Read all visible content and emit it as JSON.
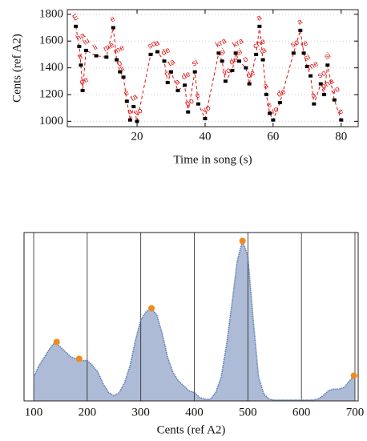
{
  "chart_data": [
    {
      "type": "line",
      "xlabel": "Time in song (s)",
      "ylabel": "Cents (ref A2)",
      "x": [
        2,
        3,
        3.5,
        4,
        5,
        8,
        11,
        13,
        14,
        15,
        16,
        17,
        18,
        19,
        20,
        24,
        26,
        28,
        29,
        30,
        32,
        34,
        35,
        37,
        38,
        40,
        44,
        45,
        46,
        48,
        49,
        50,
        52,
        53,
        55,
        56,
        57,
        58,
        59,
        60,
        62,
        66,
        68,
        69,
        70,
        71,
        72,
        74,
        75,
        76,
        78,
        80
      ],
      "values": [
        1710,
        1560,
        1420,
        1230,
        1530,
        1490,
        1480,
        1700,
        1460,
        1370,
        1330,
        1150,
        1010,
        1110,
        1000,
        1500,
        1520,
        1450,
        1290,
        1370,
        1230,
        1270,
        1070,
        1370,
        1130,
        1020,
        1510,
        1450,
        1300,
        1380,
        1510,
        1450,
        1400,
        1280,
        1500,
        1710,
        1460,
        1200,
        1060,
        1010,
        1140,
        1510,
        1680,
        1510,
        1410,
        1340,
        1130,
        1280,
        1200,
        1420,
        1160,
        1010
      ],
      "point_labels": [
        "E",
        "ha",
        "tr",
        "de",
        "lu",
        "li",
        "me",
        "e",
        "me",
        "o",
        "li",
        "e",
        "a",
        "ta",
        "vo",
        "so",
        "a",
        "de",
        "ra",
        "ta",
        "a",
        "de",
        "po",
        "si",
        "e",
        "vo",
        "kra",
        "si",
        "vo",
        "de",
        "kra",
        "si",
        "o",
        "de",
        "che",
        "a",
        "ia",
        "a",
        "e",
        "vo",
        "de",
        "so",
        "a",
        "re",
        "si",
        "me",
        "a",
        "so",
        "pha",
        "si",
        "vo",
        "e"
      ],
      "color": "#e01010",
      "marker_color": "#000000",
      "xlim": [
        -0.5,
        85
      ],
      "ylim": [
        960,
        1835
      ],
      "xticks": [
        20,
        40,
        60,
        80
      ],
      "yticks": [
        1000,
        1200,
        1400,
        1600,
        1800
      ],
      "grid": "y"
    },
    {
      "type": "area",
      "xlabel": "Cents (ref A2)",
      "x": [
        100,
        110,
        120,
        130,
        140,
        150,
        160,
        170,
        180,
        190,
        200,
        210,
        220,
        230,
        240,
        250,
        260,
        270,
        280,
        290,
        300,
        310,
        320,
        330,
        340,
        350,
        360,
        370,
        380,
        390,
        400,
        410,
        420,
        430,
        440,
        450,
        460,
        470,
        480,
        490,
        500,
        510,
        520,
        530,
        540,
        550,
        560,
        570,
        580,
        590,
        600,
        610,
        620,
        630,
        640,
        650,
        660,
        670,
        680,
        690,
        700
      ],
      "values": [
        0.14,
        0.21,
        0.26,
        0.31,
        0.35,
        0.32,
        0.29,
        0.26,
        0.25,
        0.24,
        0.24,
        0.21,
        0.17,
        0.1,
        0.05,
        0.03,
        0.05,
        0.11,
        0.21,
        0.36,
        0.48,
        0.53,
        0.55,
        0.51,
        0.4,
        0.26,
        0.17,
        0.12,
        0.09,
        0.06,
        0.05,
        0.02,
        0.01,
        0.01,
        0.05,
        0.14,
        0.33,
        0.57,
        0.83,
        0.95,
        0.86,
        0.48,
        0.14,
        0.04,
        0.01,
        0.005,
        0.005,
        0.005,
        0.005,
        0.005,
        0.005,
        0.005,
        0.005,
        0.01,
        0.03,
        0.06,
        0.07,
        0.07,
        0.08,
        0.12,
        0.15
      ],
      "color": "#5b7db5",
      "fill": "#aebbd6",
      "peaks": {
        "x": [
          143,
          185,
          320,
          490,
          698
        ],
        "values": [
          0.35,
          0.25,
          0.55,
          0.95,
          0.15
        ],
        "color": "#f08a1c"
      },
      "xlim": [
        82,
        706
      ],
      "ylim": [
        0,
        1
      ],
      "xticks": [
        100,
        200,
        300,
        400,
        500,
        600,
        700
      ],
      "grid": "x"
    }
  ]
}
